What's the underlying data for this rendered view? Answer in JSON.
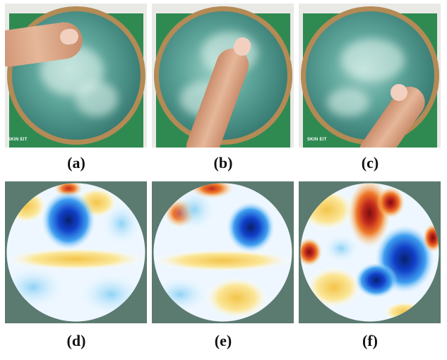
{
  "panels": {
    "a": {
      "caption": "(a)",
      "board_label": "SKIN EIT"
    },
    "b": {
      "caption": "(b)"
    },
    "c": {
      "caption": "(c)",
      "board_label": "SKIN EIT"
    },
    "d": {
      "caption": "(d)"
    },
    "e": {
      "caption": "(e)"
    },
    "f": {
      "caption": "(f)"
    }
  },
  "colors": {
    "map_background": "#5b7a70",
    "board_green": "#2f8a52",
    "gel": "#5fa69b",
    "dish_rim": "#b48a55"
  }
}
